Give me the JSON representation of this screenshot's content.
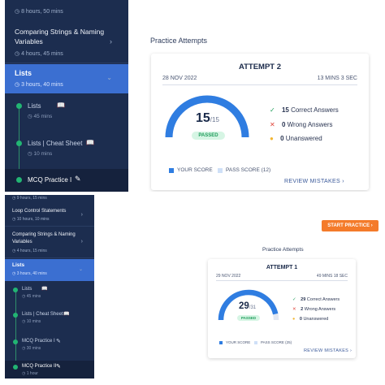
{
  "top": {
    "sidebar": {
      "prev_meta": "8 hours, 50 mins",
      "items": [
        {
          "title_line1": "Comparing Strings & Naming",
          "title_line2": "Variables",
          "meta": "4 hours, 45 mins"
        }
      ],
      "active": {
        "title": "Lists",
        "meta": "3 hours, 40 mins"
      },
      "subs": [
        {
          "title": "Lists",
          "meta": "45 mins"
        },
        {
          "title": "Lists | Cheat Sheet",
          "meta": "10 mins"
        },
        {
          "title": "MCQ Practice I",
          "meta": ""
        }
      ]
    },
    "main": {
      "heading": "Practice Attempts",
      "attempt": {
        "title": "ATTEMPT 2",
        "date": "28 NOV 2022",
        "duration": "13 MINS 3 SEC",
        "score": "15",
        "total": "/15",
        "status": "PASSED",
        "progress": 1.0,
        "correct_count": "15",
        "correct_label": "Correct Answers",
        "wrong_count": "0",
        "wrong_label": "Wrong Answers",
        "unanswered_count": "0",
        "unanswered_label": "Unanswered",
        "legend_score": "YOUR SCORE",
        "legend_pass": "PASS SCORE (12)",
        "review": "REVIEW MISTAKES"
      }
    }
  },
  "bottom": {
    "sidebar": {
      "prev_meta": "9 hours, 15 mins",
      "items": [
        {
          "title_line1": "Loop Control Statements",
          "title_line2": "",
          "meta": "10 hours, 10 mins"
        },
        {
          "title_line1": "Comparing Strings & Naming",
          "title_line2": "Variables",
          "meta": "4 hours, 15 mins"
        }
      ],
      "active": {
        "title": "Lists",
        "meta": "3 hours, 40 mins"
      },
      "subs": [
        {
          "title": "Lists",
          "meta": "45 mins"
        },
        {
          "title": "Lists | Cheat Sheet",
          "meta": "10 mins"
        },
        {
          "title": "MCQ Practice I",
          "meta": "30 mins"
        },
        {
          "title": "MCQ Practice II",
          "meta": "1 hour"
        }
      ]
    },
    "main": {
      "start_button": "START PRACTICE",
      "heading": "Practice Attempts",
      "attempt": {
        "title": "ATTEMPT 1",
        "date": "29 NOV 2022",
        "duration": "49 MINS 18 SEC",
        "score": "29",
        "total": "/31",
        "status": "PASSED",
        "progress": 0.93,
        "correct_count": "29",
        "correct_label": "Correct Answers",
        "wrong_count": "2",
        "wrong_label": "Wrong Answers",
        "unanswered_count": "0",
        "unanswered_label": "Unanswered",
        "legend_score": "YOUR SCORE",
        "legend_pass": "PASS SCORE (25)",
        "review": "REVIEW MISTAKES"
      }
    }
  },
  "colors": {
    "sidebar_bg": "#1c2d4f",
    "active_bg": "#3b6fd1",
    "accent_blue": "#2f7de1",
    "pass_green": "#1f9d5b",
    "start_orange": "#f47b2a"
  }
}
